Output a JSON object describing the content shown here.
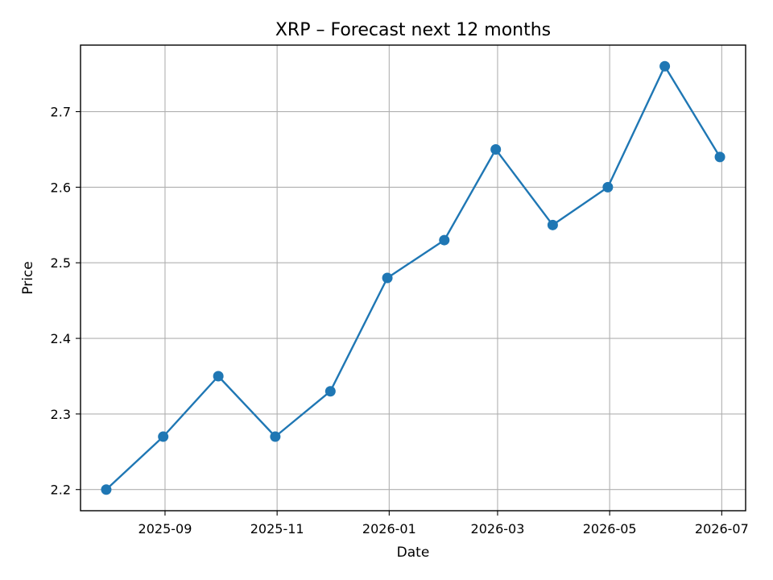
{
  "chart_data": {
    "type": "line",
    "title": "XRP – Forecast next 12 months",
    "xlabel": "Date",
    "ylabel": "Price",
    "x": [
      "2025-07-31",
      "2025-08-31",
      "2025-09-30",
      "2025-10-31",
      "2025-11-30",
      "2025-12-31",
      "2026-01-31",
      "2026-02-28",
      "2026-03-31",
      "2026-04-30",
      "2026-05-31",
      "2026-06-30"
    ],
    "series": [
      {
        "values": [
          2.2,
          2.27,
          2.35,
          2.27,
          2.33,
          2.48,
          2.53,
          2.65,
          2.55,
          2.6,
          2.76,
          2.64
        ]
      }
    ],
    "xticks": [
      "2025-09",
      "2025-11",
      "2026-01",
      "2026-03",
      "2026-05",
      "2026-07"
    ],
    "xtick_dates": [
      "2025-09-01",
      "2025-11-01",
      "2026-01-01",
      "2026-03-01",
      "2026-05-01",
      "2026-07-01"
    ],
    "yticks": [
      2.2,
      2.3,
      2.4,
      2.5,
      2.6,
      2.7
    ],
    "xlim": [
      "2025-07-17",
      "2026-07-14"
    ],
    "ylim": [
      2.172,
      2.788
    ],
    "grid": true,
    "line_color": "#1f77b4"
  }
}
